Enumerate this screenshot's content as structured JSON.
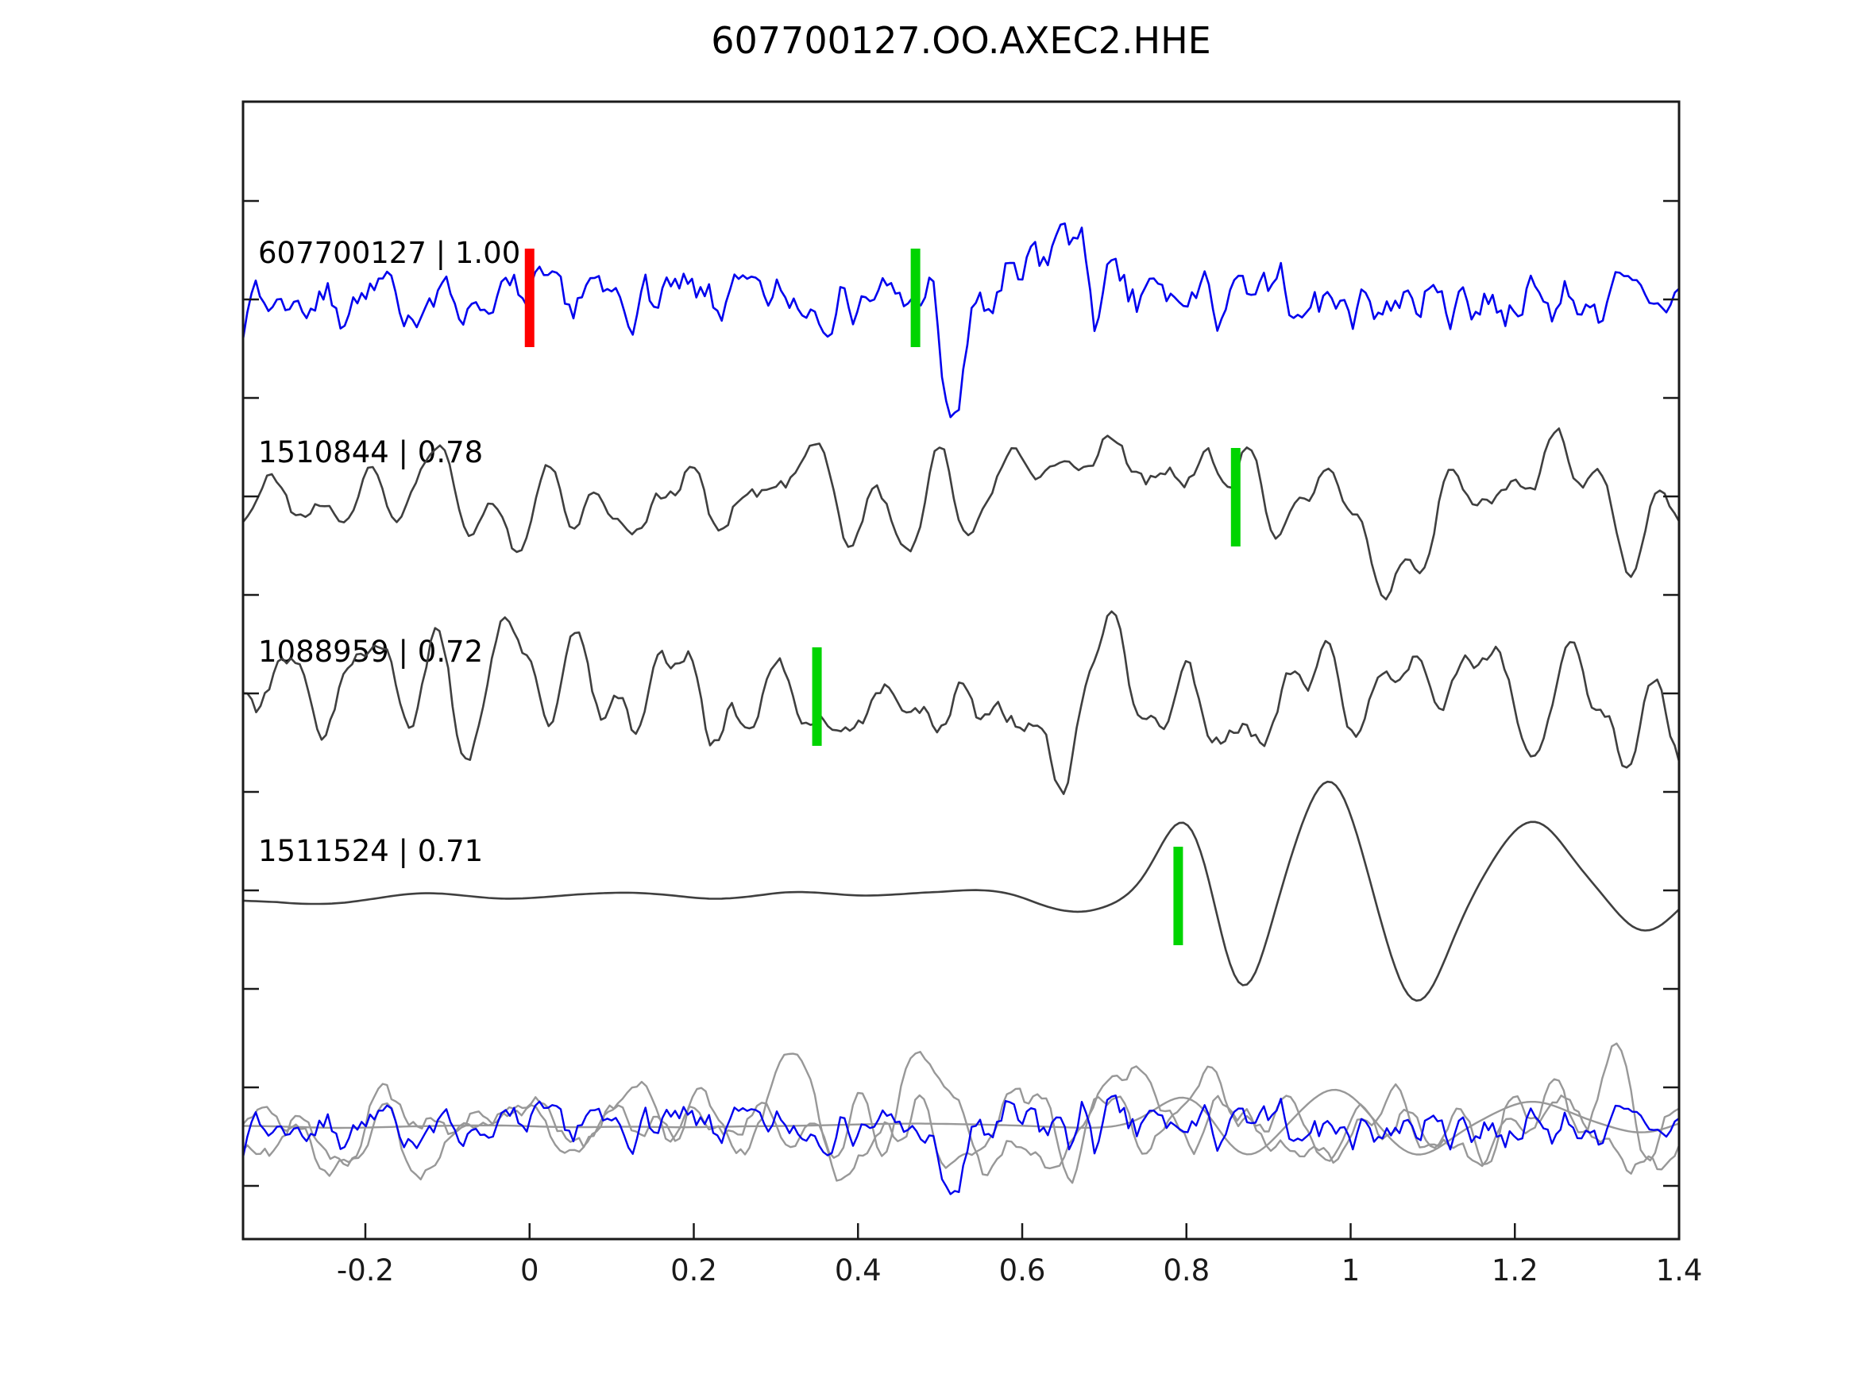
{
  "title": "607700127.OO.AXEC2.HHE",
  "colors": {
    "template_trace": "#0202ee",
    "detection_trace": "#3f3f3f",
    "overlay_gray": "#989898",
    "pick_marker": "#00d400",
    "origin_marker": "#ff0000",
    "axis": "#1a1a1a",
    "text": "#000000",
    "background": "#ffffff"
  },
  "chart_data": {
    "type": "line",
    "title": "607700127.OO.AXEC2.HHE",
    "xlabel": "",
    "ylabel": "",
    "grid": false,
    "legend_position": "none",
    "xlim": [
      -0.35,
      1.4
    ],
    "x_ticks": [
      -0.2,
      0,
      0.2,
      0.4,
      0.6,
      0.8,
      1.0,
      1.2,
      1.4
    ],
    "x_tick_labels": [
      "-0.2",
      "0",
      "0.2",
      "0.4",
      "0.6",
      "0.8",
      "1",
      "1.2",
      "1.4"
    ],
    "y_ticks_unlabeled": true,
    "series": [
      {
        "id": "607700127",
        "label": "607700127 | 1.00",
        "correlation": 1.0,
        "role": "template",
        "color": "#0202ee",
        "row": 0,
        "picks": [
          {
            "t": 0.0,
            "color": "#ff0000",
            "kind": "origin"
          },
          {
            "t": 0.47,
            "color": "#00d400",
            "kind": "pick"
          }
        ],
        "synthesis": {
          "seed": 7,
          "n": 340,
          "win": 1,
          "passes": 1,
          "amp": 52,
          "env": [
            [
              -0.35,
              1.0
            ],
            [
              0.4,
              1.0
            ],
            [
              0.5,
              0.9
            ],
            [
              0.55,
              1.3
            ],
            [
              0.72,
              1.4
            ],
            [
              0.85,
              1.1
            ],
            [
              1.4,
              1.0
            ]
          ],
          "events": [
            {
              "x": 0.513,
              "w": 0.022,
              "a": -150
            },
            {
              "x": 0.49,
              "w": 0.012,
              "a": 55
            },
            {
              "x": 0.63,
              "w": 0.03,
              "a": 55
            },
            {
              "x": 0.66,
              "w": 0.015,
              "a": 85
            }
          ]
        }
      },
      {
        "id": "1510844",
        "label": "1510844 | 0.78",
        "correlation": 0.78,
        "role": "detection",
        "color": "#3f3f3f",
        "row": 1,
        "picks": [
          {
            "t": 0.86,
            "color": "#00d400",
            "kind": "pick"
          }
        ],
        "synthesis": {
          "seed": 21,
          "n": 300,
          "win": 2,
          "passes": 2,
          "amp": 125,
          "env": [
            [
              -0.35,
              0.75
            ],
            [
              0.1,
              0.9
            ],
            [
              0.45,
              1.0
            ],
            [
              0.7,
              1.05
            ],
            [
              0.9,
              1.1
            ],
            [
              1.1,
              1.0
            ],
            [
              1.4,
              0.95
            ]
          ],
          "events": []
        }
      },
      {
        "id": "1088959",
        "label": "1088959 | 0.72",
        "correlation": 0.72,
        "role": "detection",
        "color": "#3f3f3f",
        "row": 2,
        "picks": [
          {
            "t": 0.35,
            "color": "#00d400",
            "kind": "pick"
          }
        ],
        "synthesis": {
          "seed": 33,
          "n": 330,
          "win": 2,
          "passes": 2,
          "amp": 110,
          "env": [
            [
              -0.35,
              0.9
            ],
            [
              0.3,
              1.0
            ],
            [
              0.55,
              1.1
            ],
            [
              0.75,
              1.1
            ],
            [
              0.9,
              1.0
            ],
            [
              1.1,
              0.78
            ],
            [
              1.4,
              0.82
            ]
          ],
          "events": [
            {
              "x": 0.655,
              "w": 0.028,
              "a": -100
            },
            {
              "x": 0.7,
              "w": 0.03,
              "a": 95
            }
          ]
        }
      },
      {
        "id": "1511524",
        "label": "1511524 | 0.71",
        "correlation": 0.71,
        "role": "detection",
        "color": "#3f3f3f",
        "row": 3,
        "picks": [
          {
            "t": 0.79,
            "color": "#00d400",
            "kind": "pick"
          }
        ],
        "synthesis": {
          "seed": 55,
          "n": 340,
          "win": 8,
          "passes": 3,
          "amp": 10,
          "env": [
            [
              -0.35,
              1.0
            ],
            [
              0.5,
              1.0
            ],
            [
              0.62,
              2.0
            ],
            [
              1.4,
              2.5
            ]
          ],
          "events": [
            {
              "x": 0.8,
              "w": 0.045,
              "a": 95
            },
            {
              "x": 0.868,
              "w": 0.042,
              "a": -128
            },
            {
              "x": 0.975,
              "w": 0.05,
              "a": 138
            },
            {
              "x": 1.08,
              "w": 0.05,
              "a": -132
            },
            {
              "x": 1.22,
              "w": 0.06,
              "a": 95
            },
            {
              "x": 1.36,
              "w": 0.05,
              "a": -55
            }
          ]
        }
      },
      {
        "id": "aligned-overlay",
        "label": "",
        "role": "overlay-stack",
        "row": 4,
        "components": [
          {
            "of": "1510844",
            "color": "#989898",
            "synthesis": {
              "seed": 101,
              "n": 300,
              "win": 2,
              "passes": 2,
              "amp": 95,
              "env": [
                [
                  -0.35,
                  0.8
                ],
                [
                  0.1,
                  0.95
                ],
                [
                  0.45,
                  1.0
                ],
                [
                  0.7,
                  1.1
                ],
                [
                  0.9,
                  1.15
                ],
                [
                  1.1,
                  1.05
                ],
                [
                  1.4,
                  1.1
                ]
              ],
              "events": []
            }
          },
          {
            "of": "1088959",
            "color": "#989898",
            "synthesis": {
              "seed": 131,
              "n": 330,
              "win": 2,
              "passes": 2,
              "amp": 90,
              "env": [
                [
                  -0.35,
                  0.9
                ],
                [
                  0.3,
                  1.0
                ],
                [
                  0.55,
                  1.05
                ],
                [
                  0.75,
                  1.1
                ],
                [
                  0.9,
                  1.0
                ],
                [
                  1.1,
                  0.85
                ],
                [
                  1.4,
                  0.95
                ]
              ],
              "events": [
                {
                  "x": 0.66,
                  "w": 0.03,
                  "a": -70
                },
                {
                  "x": 0.7,
                  "w": 0.03,
                  "a": 65
                }
              ]
            }
          },
          {
            "of": "1511524",
            "color": "#989898",
            "synthesis": {
              "seed": 77,
              "n": 340,
              "win": 8,
              "passes": 3,
              "amp": 6,
              "env": [
                [
                  -0.35,
                  1.0
                ],
                [
                  0.5,
                  1.0
                ],
                [
                  0.62,
                  1.6
                ],
                [
                  1.4,
                  2.0
                ]
              ],
              "events": [
                {
                  "x": 0.8,
                  "w": 0.05,
                  "a": 35
                },
                {
                  "x": 0.87,
                  "w": 0.045,
                  "a": -42
                },
                {
                  "x": 0.98,
                  "w": 0.05,
                  "a": 45
                },
                {
                  "x": 1.08,
                  "w": 0.05,
                  "a": -40
                },
                {
                  "x": 1.22,
                  "w": 0.06,
                  "a": 30
                },
                {
                  "x": 1.36,
                  "w": 0.05,
                  "a": -18
                }
              ]
            }
          },
          {
            "of": "607700127",
            "color": "#0202ee",
            "synthesis": {
              "seed": 7,
              "n": 340,
              "win": 1,
              "passes": 1,
              "amp": 40,
              "env": [
                [
                  -0.35,
                  1.0
                ],
                [
                  0.4,
                  1.0
                ],
                [
                  0.5,
                  0.9
                ],
                [
                  0.55,
                  1.3
                ],
                [
                  0.72,
                  1.4
                ],
                [
                  0.85,
                  1.1
                ],
                [
                  1.4,
                  1.0
                ]
              ],
              "events": [
                {
                  "x": 0.513,
                  "w": 0.022,
                  "a": -85
                }
              ]
            }
          }
        ]
      }
    ]
  }
}
